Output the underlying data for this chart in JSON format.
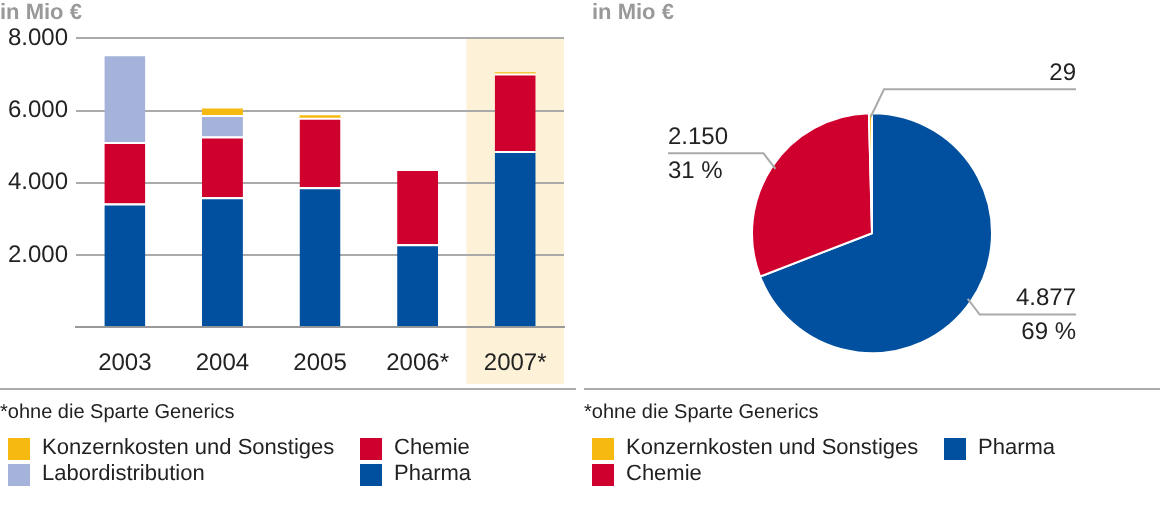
{
  "chart_data": [
    {
      "type": "bar",
      "title": "in Mio €",
      "categories": [
        "2003",
        "2004",
        "2005",
        "2006*",
        "2007*"
      ],
      "stacked": true,
      "series": [
        {
          "name": "Pharma",
          "color": "#00509f",
          "values": [
            3430,
            3600,
            3880,
            2300,
            4880
          ]
        },
        {
          "name": "Chemie",
          "color": "#d0002e",
          "values": [
            1700,
            1680,
            1920,
            2080,
            2150
          ]
        },
        {
          "name": "Labordistribution",
          "color": "#a5b3db",
          "values": [
            2430,
            600,
            null,
            null,
            null
          ]
        },
        {
          "name": "Konzernkosten und Sonstiges",
          "color": "#f5b90f",
          "values": [
            null,
            180,
            70,
            null,
            30
          ]
        }
      ],
      "ylim": [
        0,
        8000
      ],
      "yticks": [
        {
          "value": 0,
          "label": null
        },
        {
          "value": 2000,
          "label": "2.000"
        },
        {
          "value": 4000,
          "label": "4.000"
        },
        {
          "value": 6000,
          "label": "6.000"
        },
        {
          "value": 8000,
          "label": "8.000"
        }
      ],
      "grid": "y",
      "legend": "bottom",
      "bands": [
        {
          "axis": "x",
          "from": "2007*",
          "to": "2007*",
          "color": "#fdf1d8"
        }
      ],
      "annotations": [
        "*ohne die Sparte Generics"
      ]
    },
    {
      "type": "pie",
      "title": "in Mio €",
      "categories": [
        "Pharma",
        "Chemie",
        "Konzernkosten und Sonstiges"
      ],
      "values": [
        4877,
        2150,
        29
      ],
      "colors": [
        "#00509f",
        "#d0002e",
        "#f5b90f"
      ],
      "value_labels": [
        "4.877\n69 %",
        "2.150\n31 %",
        "29"
      ],
      "legend": "bottom",
      "annotations": [
        "*ohne die Sparte Generics"
      ]
    }
  ]
}
